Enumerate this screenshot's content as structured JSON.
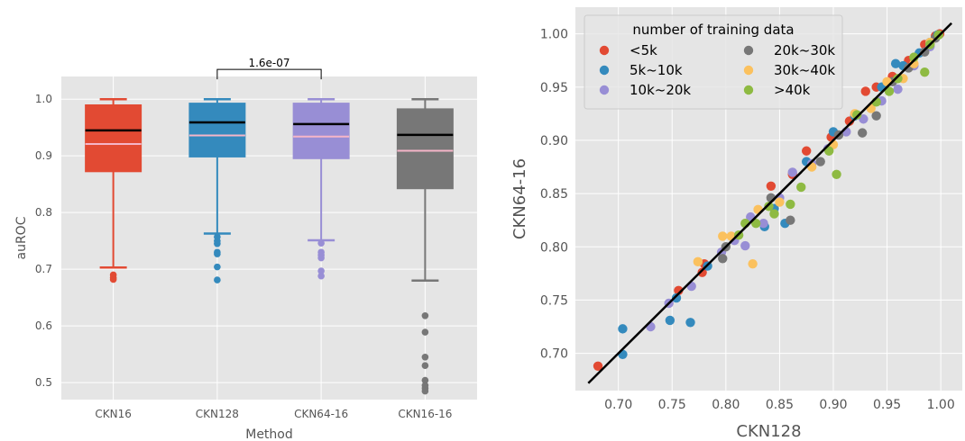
{
  "chart_data": [
    {
      "type": "box",
      "xlabel": "Method",
      "ylabel": "auROC",
      "ylim": [
        0.47,
        1.04
      ],
      "yticks": [
        "0.5",
        "0.6",
        "0.7",
        "0.8",
        "0.9",
        "1.0"
      ],
      "ytick_values": [
        0.5,
        0.6,
        0.7,
        0.8,
        0.9,
        1.0
      ],
      "grid": true,
      "background": "#e5e5e5",
      "median_color": "#000000",
      "mean_color": "#f5b5c8",
      "categories": [
        "CKN16",
        "CKN128",
        "CKN64-16",
        "CKN16-16"
      ],
      "boxes": [
        {
          "name": "CKN16",
          "color": "#e24a33",
          "whislo": 0.703,
          "q1": 0.872,
          "med": 0.945,
          "mean": 0.921,
          "q3": 0.99,
          "whishi": 1.0,
          "fliers": [
            0.69,
            0.685,
            0.682
          ]
        },
        {
          "name": "CKN128",
          "color": "#348abd",
          "whislo": 0.763,
          "q1": 0.898,
          "med": 0.959,
          "mean": 0.936,
          "q3": 0.993,
          "whishi": 1.0,
          "fliers": [
            0.757,
            0.75,
            0.745,
            0.73,
            0.727,
            0.704,
            0.681
          ]
        },
        {
          "name": "CKN64-16",
          "color": "#988ed5",
          "whislo": 0.751,
          "q1": 0.895,
          "med": 0.956,
          "mean": 0.934,
          "q3": 0.993,
          "whishi": 1.0,
          "fliers": [
            0.746,
            0.73,
            0.725,
            0.72,
            0.697,
            0.688
          ]
        },
        {
          "name": "CKN16-16",
          "color": "#777777",
          "whislo": 0.68,
          "q1": 0.842,
          "med": 0.937,
          "mean": 0.909,
          "q3": 0.983,
          "whishi": 1.0,
          "fliers": [
            0.618,
            0.589,
            0.545,
            0.53,
            0.504,
            0.495,
            0.49,
            0.485
          ]
        }
      ],
      "annotation": {
        "text": "1.6e-07",
        "between": [
          "CKN128",
          "CKN64-16"
        ],
        "y": 1.035
      }
    },
    {
      "type": "scatter",
      "xlabel": "CKN128",
      "ylabel": "CKN64-16",
      "xlim": [
        0.66,
        1.02
      ],
      "ylim": [
        0.665,
        1.025
      ],
      "xticks": [
        "0.70",
        "0.75",
        "0.80",
        "0.85",
        "0.90",
        "0.95",
        "1.00"
      ],
      "xtick_values": [
        0.7,
        0.75,
        0.8,
        0.85,
        0.9,
        0.95,
        1.0
      ],
      "yticks": [
        "0.70",
        "0.75",
        "0.80",
        "0.85",
        "0.90",
        "0.95",
        "1.00"
      ],
      "ytick_values": [
        0.7,
        0.75,
        0.8,
        0.85,
        0.9,
        0.95,
        1.0
      ],
      "grid": true,
      "background": "#e5e5e5",
      "reference_line": {
        "x": [
          0.672,
          1.01
        ],
        "y": [
          0.672,
          1.01
        ],
        "color": "#000000"
      },
      "legend": {
        "title": "number of training data",
        "placement": "upper-left",
        "ncol": 2
      },
      "series": [
        {
          "name": "<5k",
          "color": "#e24a33",
          "points": [
            [
              0.681,
              0.688
            ],
            [
              0.756,
              0.759
            ],
            [
              0.778,
              0.776
            ],
            [
              0.78,
              0.784
            ],
            [
              0.842,
              0.857
            ],
            [
              0.862,
              0.868
            ],
            [
              0.875,
              0.89
            ],
            [
              0.898,
              0.903
            ],
            [
              0.915,
              0.918
            ],
            [
              0.93,
              0.946
            ],
            [
              0.94,
              0.95
            ],
            [
              0.955,
              0.96
            ],
            [
              0.97,
              0.975
            ],
            [
              0.985,
              0.99
            ],
            [
              0.995,
              0.998
            ],
            [
              0.999,
              1.0
            ]
          ]
        },
        {
          "name": "5k~10k",
          "color": "#348abd",
          "points": [
            [
              0.704,
              0.723
            ],
            [
              0.704,
              0.699
            ],
            [
              0.748,
              0.731
            ],
            [
              0.754,
              0.752
            ],
            [
              0.767,
              0.729
            ],
            [
              0.783,
              0.782
            ],
            [
              0.836,
              0.819
            ],
            [
              0.855,
              0.822
            ],
            [
              0.845,
              0.836
            ],
            [
              0.875,
              0.88
            ],
            [
              0.9,
              0.908
            ],
            [
              0.92,
              0.923
            ],
            [
              0.945,
              0.95
            ],
            [
              0.958,
              0.972
            ],
            [
              0.965,
              0.97
            ],
            [
              0.98,
              0.982
            ],
            [
              0.99,
              0.992
            ],
            [
              0.997,
              0.999
            ]
          ]
        },
        {
          "name": "10k~20k",
          "color": "#988ed5",
          "points": [
            [
              0.73,
              0.725
            ],
            [
              0.747,
              0.747
            ],
            [
              0.768,
              0.763
            ],
            [
              0.796,
              0.795
            ],
            [
              0.808,
              0.806
            ],
            [
              0.818,
              0.801
            ],
            [
              0.823,
              0.828
            ],
            [
              0.835,
              0.822
            ],
            [
              0.85,
              0.846
            ],
            [
              0.862,
              0.87
            ],
            [
              0.88,
              0.878
            ],
            [
              0.895,
              0.892
            ],
            [
              0.912,
              0.908
            ],
            [
              0.928,
              0.92
            ],
            [
              0.945,
              0.937
            ],
            [
              0.96,
              0.948
            ],
            [
              0.975,
              0.97
            ],
            [
              0.99,
              0.988
            ]
          ]
        },
        {
          "name": "20k~30k",
          "color": "#777777",
          "points": [
            [
              0.797,
              0.789
            ],
            [
              0.8,
              0.8
            ],
            [
              0.842,
              0.846
            ],
            [
              0.86,
              0.825
            ],
            [
              0.888,
              0.88
            ],
            [
              0.905,
              0.905
            ],
            [
              0.927,
              0.907
            ],
            [
              0.94,
              0.923
            ],
            [
              0.955,
              0.955
            ],
            [
              0.97,
              0.968
            ],
            [
              0.985,
              0.983
            ],
            [
              0.995,
              0.996
            ]
          ]
        },
        {
          "name": "30k~40k",
          "color": "#fbc15e",
          "points": [
            [
              0.774,
              0.786
            ],
            [
              0.797,
              0.81
            ],
            [
              0.805,
              0.81
            ],
            [
              0.825,
              0.784
            ],
            [
              0.83,
              0.835
            ],
            [
              0.85,
              0.842
            ],
            [
              0.88,
              0.875
            ],
            [
              0.9,
              0.896
            ],
            [
              0.92,
              0.925
            ],
            [
              0.935,
              0.93
            ],
            [
              0.95,
              0.955
            ],
            [
              0.965,
              0.958
            ],
            [
              0.975,
              0.972
            ],
            [
              0.99,
              0.992
            ]
          ]
        },
        {
          "name": ">40k",
          "color": "#8eba42",
          "points": [
            [
              0.812,
              0.811
            ],
            [
              0.818,
              0.822
            ],
            [
              0.828,
              0.822
            ],
            [
              0.84,
              0.838
            ],
            [
              0.845,
              0.831
            ],
            [
              0.86,
              0.84
            ],
            [
              0.87,
              0.856
            ],
            [
              0.896,
              0.89
            ],
            [
              0.903,
              0.868
            ],
            [
              0.922,
              0.924
            ],
            [
              0.94,
              0.936
            ],
            [
              0.952,
              0.946
            ],
            [
              0.96,
              0.958
            ],
            [
              0.975,
              0.978
            ],
            [
              0.985,
              0.964
            ],
            [
              0.99,
              0.99
            ],
            [
              0.998,
              0.999
            ]
          ]
        }
      ]
    }
  ]
}
